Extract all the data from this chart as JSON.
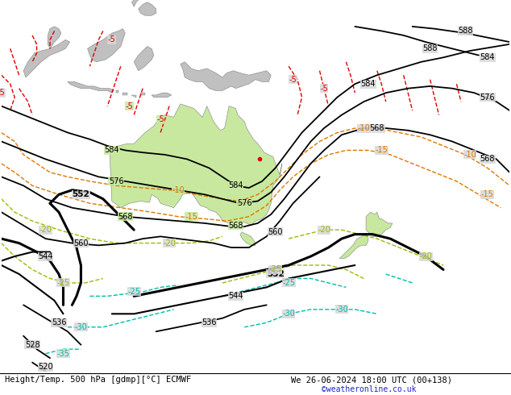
{
  "title_left": "Height/Temp. 500 hPa [gdmp][°C] ECMWF",
  "title_right": "We 26-06-2024 18:00 UTC (00+138)",
  "credit": "©weatheronline.co.uk",
  "ocean_color": "#d8d8d8",
  "land_color": "#c0c0c0",
  "australia_color": "#c8e8a0",
  "nz_color": "#c8e8a0",
  "fig_width": 6.34,
  "fig_height": 4.9,
  "dpi": 100,
  "lon_min": 90,
  "lon_max": 205,
  "lat_min": -72,
  "lat_max": 12
}
